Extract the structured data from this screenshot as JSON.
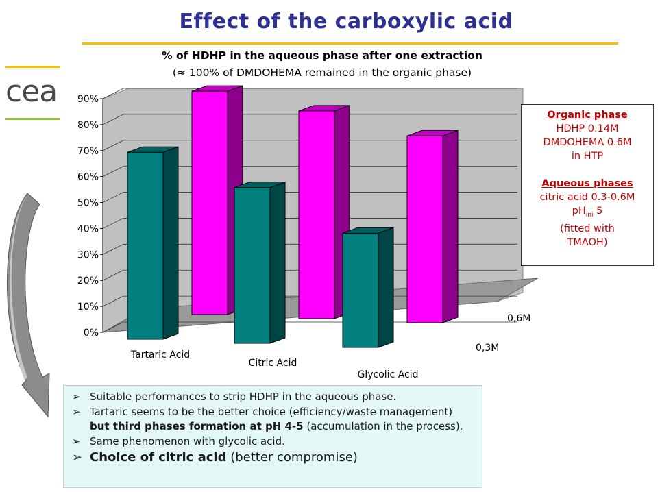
{
  "title": "Effect of the carboxylic acid",
  "logo": {
    "text": "cea",
    "line_colors": [
      "#f5c000",
      "#8dc63f"
    ]
  },
  "subtitle": {
    "line1": "% of HDHP in the aqueous phase after one extraction",
    "line2": "(≈ 100% of DMDOHEMA remained in the organic phase)"
  },
  "chart_data": {
    "type": "bar",
    "categories": [
      "Tartaric Acid",
      "Citric Acid",
      "Glycolic Acid"
    ],
    "depth_categories": [
      "0,3M",
      "0,6M"
    ],
    "series": [
      {
        "name": "0,3M",
        "values": [
          72,
          60,
          44
        ],
        "color": "#007f7f"
      },
      {
        "name": "0,6M",
        "values": [
          86,
          80,
          72
        ],
        "color": "#ff00ff"
      }
    ],
    "y_ticks": [
      "0%",
      "10%",
      "20%",
      "30%",
      "40%",
      "50%",
      "60%",
      "70%",
      "80%",
      "90%"
    ],
    "ylim": [
      0,
      90
    ],
    "grid": true,
    "title": "% of HDHP in the aqueous phase after one extraction",
    "xlabel": "",
    "ylabel": ""
  },
  "infobox": {
    "organic_heading": "Organic phase",
    "organic_lines": [
      "HDHP 0.14M",
      "DMDOHEMA 0.6M",
      "in HTP"
    ],
    "aqueous_heading": "Aqueous phases",
    "aqueous_line1": "citric acid 0.3-0.6M",
    "ph_main": "pH",
    "ph_sub": "ini",
    "ph_value": " 5",
    "aqueous_line3": "(fitted with",
    "aqueous_line4": "TMAOH)"
  },
  "bullets": {
    "b1": "Suitable performances to strip HDHP in the aqueous phase.",
    "b2": "Tartaric seems to be the better choice (efficiency/waste management)",
    "b2_cont_bold": "but third phases formation at pH 4-5",
    "b2_cont_rest": " (accumulation in the process).",
    "b3": "Same phenomenon with glycolic acid.",
    "b4_bold": "Choice of citric acid",
    "b4_rest": " (better compromise)"
  }
}
